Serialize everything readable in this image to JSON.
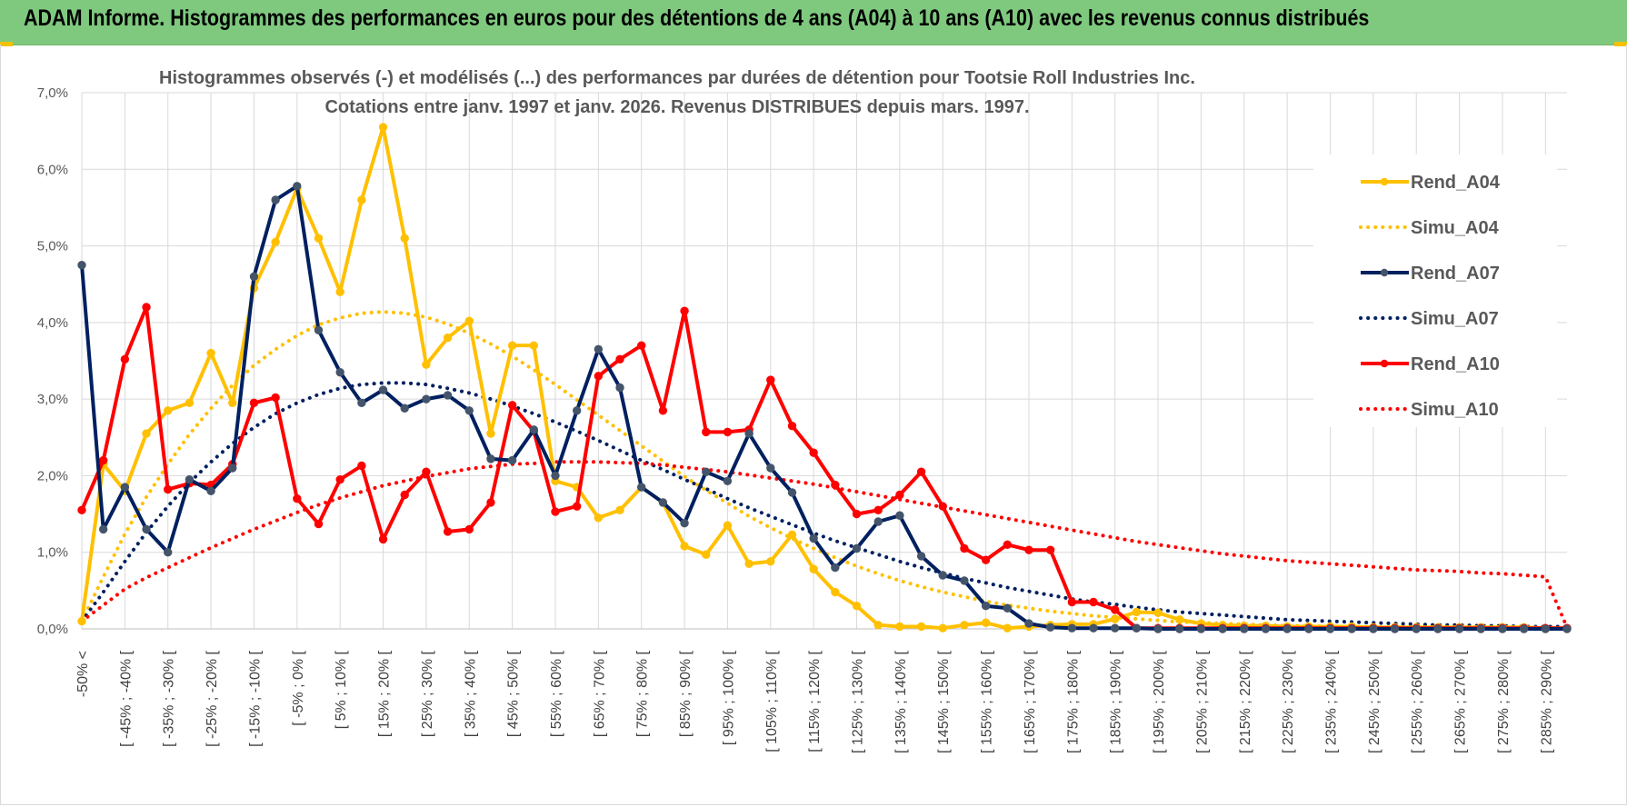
{
  "banner": {
    "title": "ADAM Informe. Histogrammes des performances en euros pour des détentions de 4 ans (A04) à 10 ans (A10) avec les revenus connus distribués"
  },
  "colors": {
    "banner_bg": "#7fc97f",
    "A04": "#ffc000",
    "A07": "#002060",
    "A10": "#ff0000",
    "marker_A07": "#44546a"
  },
  "chart_data": {
    "type": "line",
    "title_line1": "Histogrammes observés (-) et modélisés (...) des performances par durées de détention pour Tootsie Roll Industries Inc.",
    "title_line2": "Cotations entre janv. 1997 et janv. 2026. Revenus DISTRIBUES depuis mars. 1997.",
    "xlabel": "",
    "ylabel": "",
    "ylim": [
      0,
      0.07
    ],
    "yticks": [
      "0,0%",
      "1,0%",
      "2,0%",
      "3,0%",
      "4,0%",
      "5,0%",
      "6,0%",
      "7,0%"
    ],
    "grid": true,
    "legend_position": "right",
    "x_labels": [
      "-50% <",
      "[ -45% ; -40% [",
      "[ -35% ; -30% [",
      "[ -25% ; -20% [",
      "[ -15% ; -10% [",
      "[ -5% ; 0% [",
      "[ 5% ; 10% [",
      "[ 15% ; 20% [",
      "[ 25% ; 30% [",
      "[ 35% ; 40% [",
      "[ 45% ; 50% [",
      "[ 55% ; 60% [",
      "[ 65% ; 70% [",
      "[ 75% ; 80% [",
      "[ 85% ; 90% [",
      "[ 95% ; 100% [",
      "[ 105% ; 110% [",
      "[ 115% ; 120% [",
      "[ 125% ; 130% [",
      "[ 135% ; 140% [",
      "[ 145% ; 150% [",
      "[ 155% ; 160% [",
      "[ 165% ; 170% [",
      "[ 175% ; 180% [",
      "[ 185% ; 190% [",
      "[ 195% ; 200% [",
      "[ 205% ; 210% [",
      "[ 215% ; 220% [",
      "[ 225% ; 230% [",
      "[ 235% ; 240% [",
      "[ 245% ; 250% [",
      "[ 255% ; 260% [",
      "[ 265% ; 270% [",
      "[ 275% ; 280% [",
      "[ 285% ; 290% ["
    ],
    "n_points": 70,
    "series": [
      {
        "name": "Rend_A04",
        "style": "solid",
        "color": "#ffc000",
        "marker_color": "#ffc000",
        "values": [
          0.001,
          0.0215,
          0.018,
          0.0255,
          0.0285,
          0.0295,
          0.036,
          0.0295,
          0.0445,
          0.0505,
          0.0575,
          0.051,
          0.044,
          0.056,
          0.0655,
          0.051,
          0.0345,
          0.038,
          0.0402,
          0.0255,
          0.037,
          0.037,
          0.0193,
          0.0185,
          0.0145,
          0.0155,
          0.0185,
          0.0165,
          0.0108,
          0.0097,
          0.0135,
          0.0085,
          0.0088,
          0.0123,
          0.0078,
          0.0048,
          0.003,
          0.0005,
          0.0003,
          0.0003,
          0.0001,
          0.0005,
          0.0008,
          0.0001,
          0.0003,
          0.0005,
          0.0006,
          0.0006,
          0.0013,
          0.0022,
          0.0021,
          0.0012,
          0.0007,
          0.0005,
          0.0004,
          0.0004,
          0.0003,
          0.0003,
          0.0003,
          0.0003,
          0.0002,
          0.0002,
          0.0002,
          0.0002,
          0.0002,
          0.0002,
          0.0002,
          0.0002,
          0.0001,
          0.0001
        ]
      },
      {
        "name": "Simu_A04",
        "style": "dotted",
        "color": "#ffc000",
        "values": [
          0.001,
          0.0068,
          0.0124,
          0.0172,
          0.0215,
          0.0254,
          0.0288,
          0.0318,
          0.0344,
          0.0365,
          0.0383,
          0.0397,
          0.0406,
          0.0412,
          0.0414,
          0.0412,
          0.0407,
          0.0398,
          0.0386,
          0.0372,
          0.0356,
          0.0338,
          0.0319,
          0.0299,
          0.0279,
          0.0259,
          0.0239,
          0.0219,
          0.0199,
          0.0181,
          0.0164,
          0.0147,
          0.0132,
          0.0118,
          0.0105,
          0.0093,
          0.0082,
          0.0072,
          0.0063,
          0.0055,
          0.0048,
          0.0042,
          0.0036,
          0.0031,
          0.0027,
          0.0023,
          0.002,
          0.0017,
          0.0015,
          0.0013,
          0.0011,
          0.0009,
          0.0008,
          0.0007,
          0.0006,
          0.0005,
          0.0004,
          0.0004,
          0.0003,
          0.0003,
          0.0002,
          0.0002,
          0.0002,
          0.0001,
          0.0001,
          0.0001,
          0.0001,
          0.0001,
          0.0001,
          0.0
        ]
      },
      {
        "name": "Rend_A07",
        "style": "solid",
        "color": "#002060",
        "marker_color": "#44546a",
        "values": [
          0.0475,
          0.013,
          0.0185,
          0.013,
          0.01,
          0.0195,
          0.018,
          0.021,
          0.046,
          0.056,
          0.0578,
          0.039,
          0.0335,
          0.0295,
          0.0312,
          0.0288,
          0.03,
          0.0305,
          0.0285,
          0.0222,
          0.022,
          0.026,
          0.02,
          0.0285,
          0.0365,
          0.0315,
          0.0185,
          0.0165,
          0.0138,
          0.0205,
          0.0193,
          0.0255,
          0.021,
          0.0178,
          0.0118,
          0.008,
          0.0105,
          0.014,
          0.0148,
          0.0095,
          0.007,
          0.0063,
          0.003,
          0.0027,
          0.0007,
          0.0002,
          0.0001,
          0.0001,
          0.0001,
          0.0001,
          0.0,
          0.0,
          0.0,
          0.0,
          0.0,
          0.0,
          0.0,
          0.0,
          0.0,
          0.0,
          0.0,
          0.0,
          0.0,
          0.0,
          0.0,
          0.0,
          0.0,
          0.0,
          0.0,
          0.0
        ]
      },
      {
        "name": "Simu_A07",
        "style": "dotted",
        "color": "#002060",
        "values": [
          0.001,
          0.0048,
          0.0088,
          0.0126,
          0.016,
          0.0191,
          0.0218,
          0.0242,
          0.0263,
          0.0281,
          0.0295,
          0.0306,
          0.0314,
          0.0319,
          0.0321,
          0.0321,
          0.0319,
          0.0314,
          0.0308,
          0.03,
          0.0291,
          0.0281,
          0.027,
          0.0258,
          0.0246,
          0.0233,
          0.022,
          0.0208,
          0.0195,
          0.0183,
          0.017,
          0.0158,
          0.0147,
          0.0136,
          0.0125,
          0.0115,
          0.0106,
          0.0097,
          0.0088,
          0.008,
          0.0073,
          0.0066,
          0.006,
          0.0054,
          0.0049,
          0.0044,
          0.0039,
          0.0035,
          0.0032,
          0.0028,
          0.0025,
          0.0022,
          0.002,
          0.0018,
          0.0016,
          0.0014,
          0.0012,
          0.0011,
          0.001,
          0.0009,
          0.0008,
          0.0007,
          0.0006,
          0.0005,
          0.0005,
          0.0004,
          0.0004,
          0.0003,
          0.0003,
          0.0003
        ]
      },
      {
        "name": "Rend_A10",
        "style": "solid",
        "color": "#ff0000",
        "marker_color": "#ff0000",
        "values": [
          0.0155,
          0.022,
          0.0352,
          0.042,
          0.0182,
          0.019,
          0.0188,
          0.0215,
          0.0295,
          0.0302,
          0.017,
          0.0137,
          0.0195,
          0.0213,
          0.0117,
          0.0175,
          0.0205,
          0.0127,
          0.013,
          0.0165,
          0.0292,
          0.0258,
          0.0153,
          0.016,
          0.033,
          0.0352,
          0.037,
          0.0285,
          0.0415,
          0.0257,
          0.0257,
          0.026,
          0.0325,
          0.0265,
          0.023,
          0.0188,
          0.015,
          0.0155,
          0.0175,
          0.0205,
          0.016,
          0.0105,
          0.009,
          0.011,
          0.0103,
          0.0103,
          0.0035,
          0.0035,
          0.0025,
          0.0001,
          0.0001,
          0.0001,
          0.0001,
          0.0001,
          0.0001,
          0.0001,
          0.0001,
          0.0001,
          0.0001,
          0.0001,
          0.0001,
          0.0001,
          0.0001,
          0.0001,
          0.0001,
          0.0001,
          0.0001,
          0.0001,
          0.0001,
          0.0001
        ]
      },
      {
        "name": "Simu_A10",
        "style": "dotted",
        "color": "#ff0000",
        "values": [
          0.001,
          0.0031,
          0.0052,
          0.0067,
          0.008,
          0.0093,
          0.0106,
          0.0118,
          0.013,
          0.0141,
          0.0152,
          0.0162,
          0.0171,
          0.0179,
          0.0187,
          0.0193,
          0.0199,
          0.0204,
          0.0209,
          0.0212,
          0.0215,
          0.0216,
          0.0218,
          0.0218,
          0.0218,
          0.0217,
          0.0216,
          0.0214,
          0.0211,
          0.0208,
          0.0205,
          0.0201,
          0.0197,
          0.0193,
          0.0189,
          0.0184,
          0.0179,
          0.0174,
          0.0169,
          0.0164,
          0.0159,
          0.0154,
          0.0149,
          0.0144,
          0.0139,
          0.0134,
          0.0129,
          0.0124,
          0.0119,
          0.0114,
          0.011,
          0.0106,
          0.0102,
          0.0098,
          0.0095,
          0.0092,
          0.0089,
          0.0087,
          0.0085,
          0.0083,
          0.0081,
          0.0079,
          0.0077,
          0.0076,
          0.0075,
          0.0073,
          0.0072,
          0.007,
          0.0068,
          0.0002
        ]
      }
    ]
  }
}
